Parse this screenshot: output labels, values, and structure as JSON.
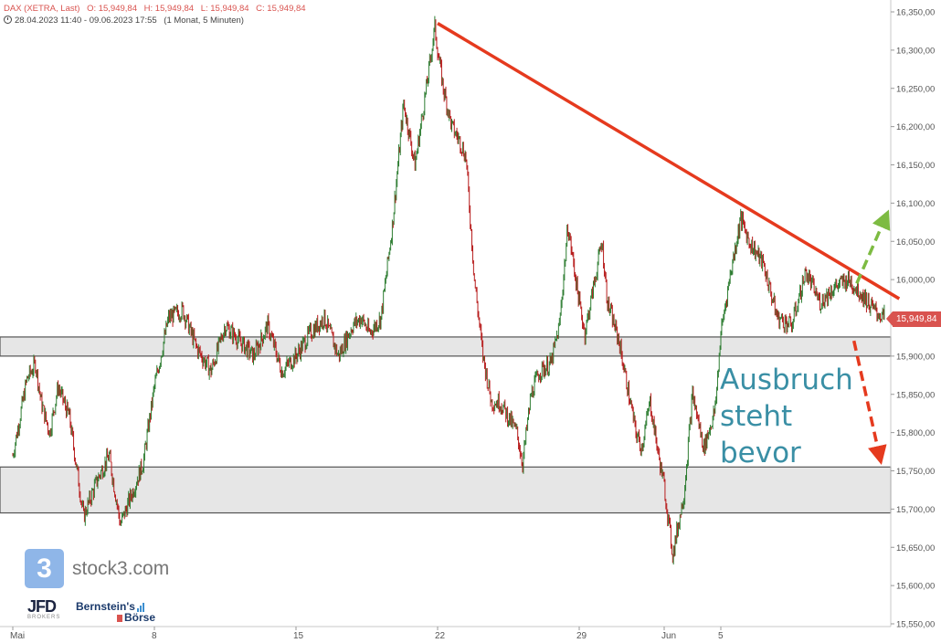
{
  "header": {
    "symbol": "DAX (XETRA, Last)",
    "open": "O: 15,949,84",
    "high": "H: 15,949,84",
    "low": "L: 15,949,84",
    "close": "C: 15,949,84",
    "range": "28.04.2023 11:40 - 09.06.2023 17:55",
    "period": "(1 Monat, 5 Minuten)"
  },
  "annotation": {
    "line1": "Ausbruch",
    "line2": "steht",
    "line3": "bevor"
  },
  "watermark": {
    "logo_glyph": "3",
    "text": "stock3.com"
  },
  "logos": {
    "jfd": "JFD",
    "jfd_sub": "BROKERS",
    "bernstein_line1": "Bernstein's",
    "bernstein_line2": "Börse"
  },
  "last_price": "15,949,84",
  "colors": {
    "up": "#2e7d32",
    "down": "#b71c1c",
    "trendline": "#e53a1e",
    "arrow_up": "#7dbb42",
    "arrow_down": "#e53a1e",
    "zone_fill": "#e6e6e6"
  },
  "chart_data": {
    "type": "line",
    "title": "DAX (XETRA, Last)",
    "xlabel": "",
    "ylabel": "",
    "ylim": [
      15540,
      16360
    ],
    "y_ticks": [
      "15,550,00",
      "15,600,00",
      "15,650,00",
      "15,700,00",
      "15,750,00",
      "15,800,00",
      "15,850,00",
      "15,900,00",
      "15,950,00",
      "16,000,00",
      "16,050,00",
      "16,100,00",
      "16,150,00",
      "16,200,00",
      "16,250,00",
      "16,300,00",
      "16,350,00"
    ],
    "x_ticks": [
      "Mai",
      "8",
      "15",
      "22",
      "29",
      "Jun",
      "5"
    ],
    "x_tick_sessions": [
      0,
      5,
      10,
      15,
      20,
      23,
      25
    ],
    "session_count": 31,
    "series": [
      {
        "x": [
          0,
          0.5,
          0.8,
          1.0,
          1.3,
          1.6,
          2.0,
          2.5,
          3.0,
          3.4,
          3.8,
          4.2,
          4.6,
          5.0,
          5.5,
          6.0,
          6.5,
          7.0,
          7.5,
          8.0,
          8.5,
          9.0,
          9.5,
          10.0,
          10.5,
          11.0,
          11.5,
          12.0,
          12.3,
          12.6,
          13.0,
          13.4,
          13.8,
          14.2,
          14.6,
          14.9,
          15.0,
          15.2,
          15.5,
          15.8,
          16.0,
          16.3,
          16.6,
          16.9,
          17.2,
          17.5,
          17.8,
          18.0,
          18.3,
          18.6,
          19.0,
          19.3,
          19.6,
          20.0,
          20.2,
          20.5,
          20.8,
          21.0,
          21.4,
          21.7,
          22.0,
          22.2,
          22.5,
          22.8,
          23.0,
          23.3,
          23.7,
          24.0,
          24.4,
          24.8,
          25.0,
          25.3,
          25.7,
          26.0,
          26.5,
          27.0,
          27.5,
          28.0,
          28.5,
          29.0,
          29.5,
          30.0,
          30.4,
          30.8
        ],
        "y": [
          15770,
          15870,
          15890,
          15840,
          15800,
          15860,
          15820,
          15690,
          15740,
          15770,
          15680,
          15720,
          15760,
          15860,
          15950,
          15960,
          15910,
          15880,
          15940,
          15920,
          15900,
          15940,
          15880,
          15900,
          15930,
          15950,
          15900,
          15940,
          15950,
          15930,
          15950,
          16070,
          16230,
          16150,
          16250,
          16330,
          16300,
          16250,
          16200,
          16180,
          16160,
          16000,
          15900,
          15840,
          15840,
          15820,
          15800,
          15760,
          15850,
          15880,
          15890,
          15940,
          16070,
          15970,
          15930,
          15990,
          16050,
          15970,
          15920,
          15860,
          15800,
          15780,
          15840,
          15770,
          15730,
          15640,
          15720,
          15850,
          15780,
          15830,
          15930,
          16000,
          16080,
          16050,
          16020,
          15950,
          15940,
          16010,
          15970,
          15990,
          16000,
          15980,
          15960,
          15950
        ]
      }
    ],
    "resistance_zones": [
      [
        15900,
        15925
      ],
      [
        15695,
        15755
      ]
    ],
    "trendline": {
      "x": [
        15.0,
        31.3
      ],
      "y": [
        16335,
        15975
      ]
    },
    "grid": false,
    "legend": "none"
  }
}
